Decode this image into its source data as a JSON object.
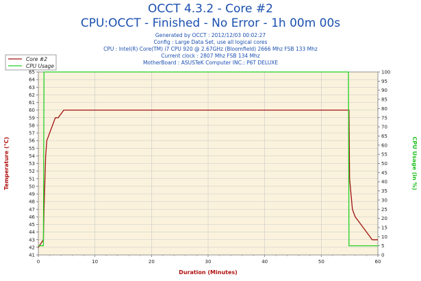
{
  "header": {
    "title": "OCCT 4.3.2 - Core #2",
    "subtitle": "CPU:OCCT - Finished - No Error - 1h 00m 00s",
    "info": [
      "Generated by OCCT : 2012/12/03 00:02:27",
      "Config : Large Data Set, use all logical cores",
      "CPU : Intel(R) Core(TM) i7 CPU 920 @ 2.67GHz (Bloomfield) 2666 Mhz FSB 133 Mhz",
      "Current clock : 2807 Mhz FSB 134 Mhz",
      "MotherBoard : ASUSTeK Computer INC.: P6T DELUXE"
    ]
  },
  "chart_data": {
    "type": "line",
    "xlabel": "Duration (Minutes)",
    "ylabel": "Temperature (°C)",
    "y2label": "CPU Usage (in %)",
    "xlim": [
      0,
      60
    ],
    "ylim": [
      41,
      65
    ],
    "y2lim": [
      0,
      100
    ],
    "x_ticks": [
      0,
      10,
      20,
      30,
      40,
      50,
      60
    ],
    "y_ticks": [
      41,
      42,
      43,
      44,
      45,
      46,
      47,
      48,
      49,
      50,
      51,
      52,
      53,
      54,
      55,
      56,
      57,
      58,
      59,
      60,
      61,
      62,
      63,
      64,
      65
    ],
    "y2_ticks": [
      0,
      5,
      10,
      15,
      20,
      25,
      30,
      35,
      40,
      45,
      50,
      55,
      60,
      65,
      70,
      75,
      80,
      85,
      90,
      95,
      100
    ],
    "legend_position": "top-left",
    "colors": {
      "temperature": "#a01010",
      "usage": "#22d022",
      "plot_bg": "#faf2dc",
      "grid": "#c8c8c8"
    },
    "series": [
      {
        "name": "Core #2",
        "axis": "left",
        "x": [
          0,
          0.9,
          1.0,
          1.3,
          1.5,
          2.0,
          2.5,
          3.0,
          3.5,
          4.0,
          4.5,
          5.0,
          10,
          20,
          30,
          40,
          50,
          54.5,
          54.9,
          55.0,
          55.5,
          56,
          57,
          58,
          59,
          60
        ],
        "y": [
          42,
          43,
          47,
          54,
          56,
          57,
          58,
          59,
          59,
          59.5,
          60,
          60,
          60,
          60,
          60,
          60,
          60,
          60,
          60,
          51,
          47,
          46,
          45,
          44,
          43,
          43
        ]
      },
      {
        "name": "CPU Usage",
        "axis": "right",
        "x": [
          0,
          0.9,
          1.0,
          54.8,
          54.9,
          60
        ],
        "y": [
          5,
          5,
          100,
          100,
          5,
          5
        ]
      }
    ]
  }
}
